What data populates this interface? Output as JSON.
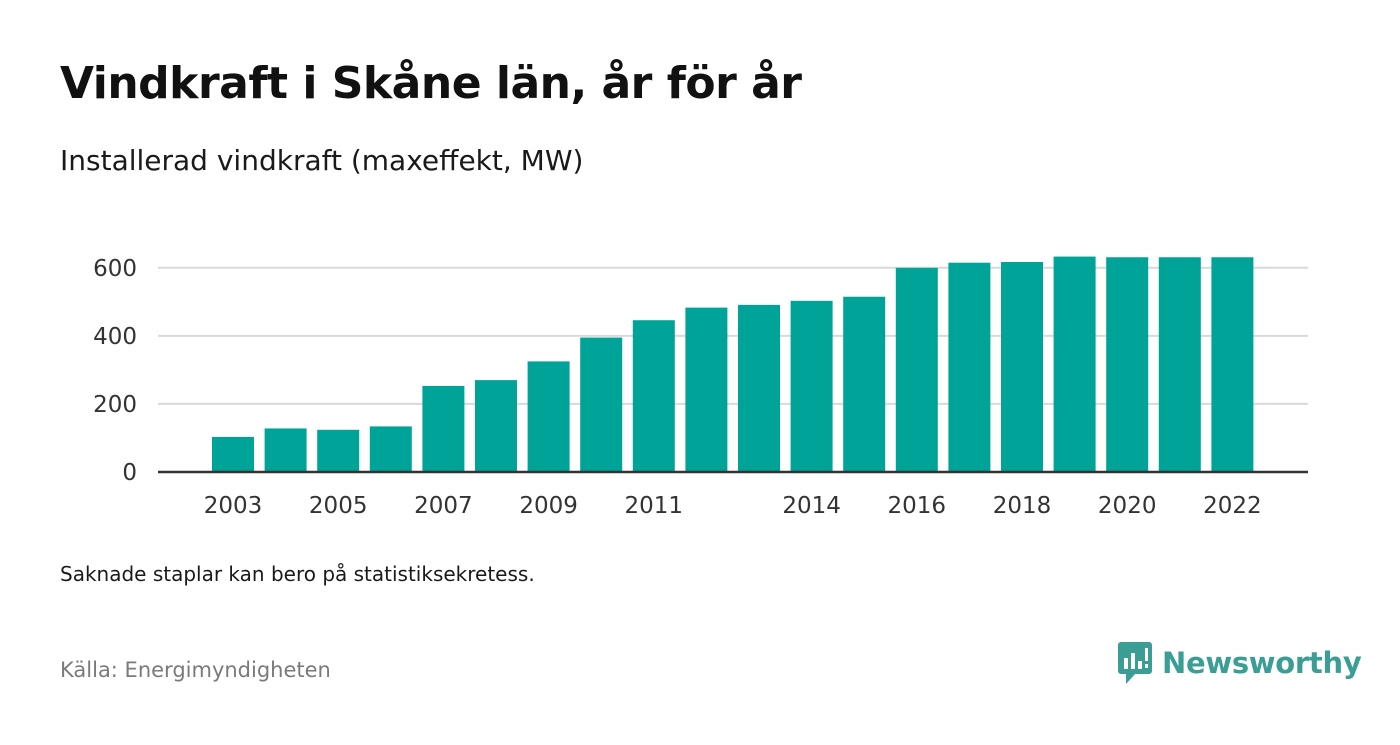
{
  "title": "Vindkraft i Skåne län, år för år",
  "subtitle": "Installerad vindkraft (maxeffekt, MW)",
  "note": "Saknade staplar kan bero på statistiksekretess.",
  "source": "Källa: Energimyndigheten",
  "brand": {
    "name": "Newsworthy",
    "icon": "newsworthy-logo-icon",
    "color": "#3a9e95"
  },
  "colors": {
    "bar": "#00a398",
    "grid": "#d9d9d9",
    "axis": "#333333"
  },
  "chart_data": {
    "type": "bar",
    "categories": [
      "2003",
      "2004",
      "2005",
      "2006",
      "2007",
      "2008",
      "2009",
      "2010",
      "2011",
      "2012",
      "2013",
      "2014",
      "2015",
      "2016",
      "2017",
      "2018",
      "2019",
      "2020",
      "2021",
      "2022"
    ],
    "x_tick_labels": [
      "2003",
      "",
      "2005",
      "",
      "2007",
      "",
      "2009",
      "",
      "2011",
      "",
      "",
      "2014",
      "",
      "2016",
      "",
      "2018",
      "",
      "2020",
      "",
      "2022"
    ],
    "values": [
      103,
      128,
      124,
      134,
      253,
      270,
      325,
      395,
      446,
      483,
      491,
      503,
      515,
      600,
      615,
      617,
      633,
      631,
      631,
      631
    ],
    "y_ticks": [
      0,
      200,
      400,
      600
    ],
    "ylim": [
      0,
      620
    ],
    "grid": true,
    "legend": "none"
  }
}
